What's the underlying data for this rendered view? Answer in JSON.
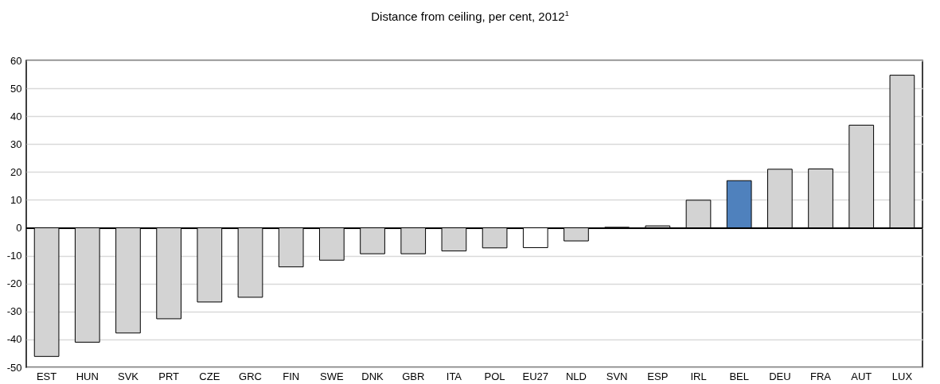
{
  "chart_data": {
    "type": "bar",
    "title": "Distance from ceiling, per cent, 2012$^{1}$",
    "categories": [
      "EST",
      "HUN",
      "SVK",
      "PRT",
      "CZE",
      "GRC",
      "FIN",
      "SWE",
      "DNK",
      "GBR",
      "ITA",
      "POL",
      "EU27",
      "NLD",
      "SVN",
      "ESP",
      "IRL",
      "BEL",
      "DEU",
      "FRA",
      "AUT",
      "LUX"
    ],
    "values": [
      -46.1,
      -41,
      -37.7,
      -32.6,
      -26.6,
      -24.9,
      -14,
      -11.6,
      -9.3,
      -9.3,
      -8.3,
      -7.2,
      -7.1,
      -4.7,
      0.2,
      0.7,
      9.9,
      16.9,
      21,
      21.1,
      36.8,
      54.7
    ],
    "colors": [
      "#d3d3d3",
      "#d3d3d3",
      "#d3d3d3",
      "#d3d3d3",
      "#d3d3d3",
      "#d3d3d3",
      "#d3d3d3",
      "#d3d3d3",
      "#d3d3d3",
      "#d3d3d3",
      "#d3d3d3",
      "#d3d3d3",
      "#ffffff",
      "#d3d3d3",
      "#d3d3d3",
      "#d3d3d3",
      "#d3d3d3",
      "#4f81bd",
      "#d3d3d3",
      "#d3d3d3",
      "#d3d3d3",
      "#d3d3d3"
    ],
    "ylim": [
      -50,
      60
    ],
    "yticks": [
      -50,
      -40,
      -30,
      -20,
      -10,
      0,
      10,
      20,
      30,
      40,
      50,
      60
    ],
    "grid": "y"
  }
}
